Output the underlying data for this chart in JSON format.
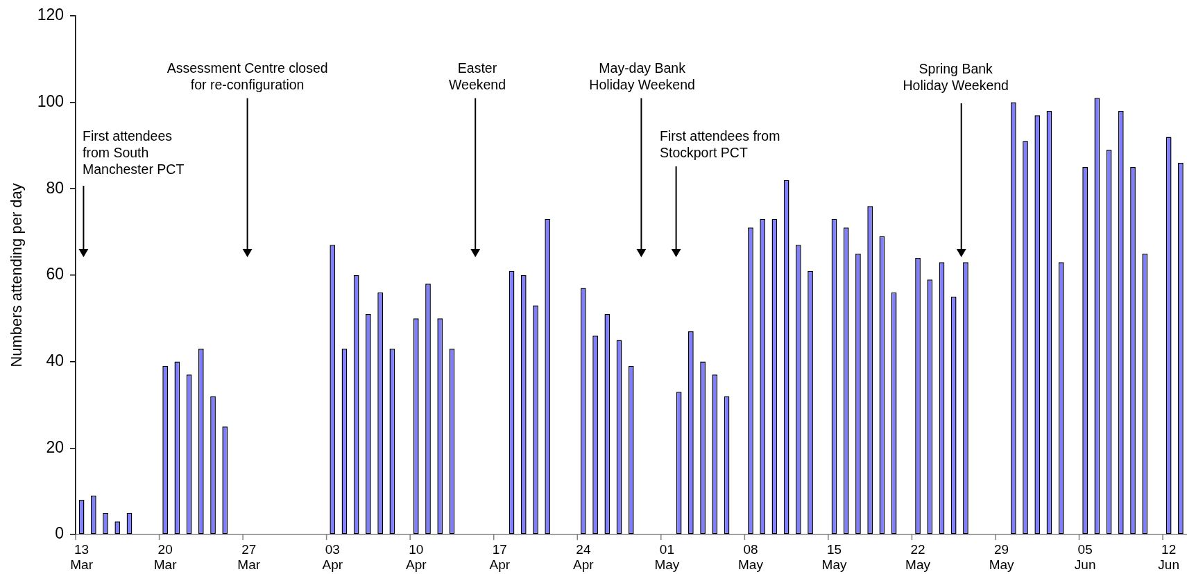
{
  "chart_data": {
    "type": "bar",
    "ylabel": "Numbers attending per day",
    "x": [
      "--03-13",
      "--03-14",
      "--03-15",
      "--03-16",
      "--03-17",
      "--03-20",
      "--03-21",
      "--03-22",
      "--03-23",
      "--03-24",
      "--03-25",
      "--04-03",
      "--04-04",
      "--04-05",
      "--04-06",
      "--04-07",
      "--04-08",
      "--04-10",
      "--04-11",
      "--04-12",
      "--04-13",
      "--04-18",
      "--04-19",
      "--04-20",
      "--04-21",
      "--04-24",
      "--04-25",
      "--04-26",
      "--04-27",
      "--04-28",
      "--05-02",
      "--05-03",
      "--05-04",
      "--05-05",
      "--05-06",
      "--05-08",
      "--05-09",
      "--05-10",
      "--05-11",
      "--05-12",
      "--05-13",
      "--05-15",
      "--05-16",
      "--05-17",
      "--05-18",
      "--05-19",
      "--05-20",
      "--05-22",
      "--05-23",
      "--05-24",
      "--05-25",
      "--05-26",
      "--05-30",
      "--05-31",
      "--06-01",
      "--06-02",
      "--06-03",
      "--06-05",
      "--06-06",
      "--06-07",
      "--06-08",
      "--06-09",
      "--06-10",
      "--06-12",
      "--06-13"
    ],
    "values": [
      8,
      9,
      5,
      3,
      5,
      39,
      40,
      37,
      43,
      32,
      25,
      67,
      43,
      60,
      51,
      56,
      43,
      50,
      58,
      50,
      43,
      61,
      60,
      53,
      73,
      57,
      46,
      51,
      45,
      39,
      33,
      47,
      40,
      37,
      32,
      71,
      73,
      73,
      82,
      67,
      61,
      73,
      71,
      65,
      76,
      69,
      56,
      64,
      59,
      63,
      55,
      63,
      100,
      91,
      97,
      98,
      63,
      85,
      101,
      89,
      98,
      85,
      65,
      92,
      86
    ],
    "color": "#8080ff",
    "xlim": [
      "--03-12T12:00",
      "--06-13T12:00"
    ],
    "xticks": [
      {
        "value": "--03-13",
        "label": "13\nMar"
      },
      {
        "value": "--03-20",
        "label": "20\nMar"
      },
      {
        "value": "--03-27",
        "label": "27\nMar"
      },
      {
        "value": "--04-03",
        "label": "03\nApr"
      },
      {
        "value": "--04-10",
        "label": "10\nApr"
      },
      {
        "value": "--04-17",
        "label": "17\nApr"
      },
      {
        "value": "--04-24",
        "label": "24\nApr"
      },
      {
        "value": "--05-01",
        "label": "01\nMay"
      },
      {
        "value": "--05-08",
        "label": "08\nMay"
      },
      {
        "value": "--05-15",
        "label": "15\nMay"
      },
      {
        "value": "--05-22",
        "label": "22\nMay"
      },
      {
        "value": "--05-29",
        "label": "29\nMay"
      },
      {
        "value": "--06-05",
        "label": "05\nJun"
      },
      {
        "value": "--06-12",
        "label": "12\nJun"
      }
    ],
    "ylim": [
      0,
      120
    ],
    "yticks": [
      0,
      20,
      40,
      60,
      80,
      100,
      120
    ],
    "annotations": [
      "First attendees\nfrom South\nManchester PCT",
      "Assessment Centre closed\nfor re-configuration",
      "Easter\nWeekend",
      "May-day Bank\nHoliday Weekend",
      "First attendees from\nStockport PCT",
      "Spring Bank\nHoliday Weekend"
    ]
  }
}
